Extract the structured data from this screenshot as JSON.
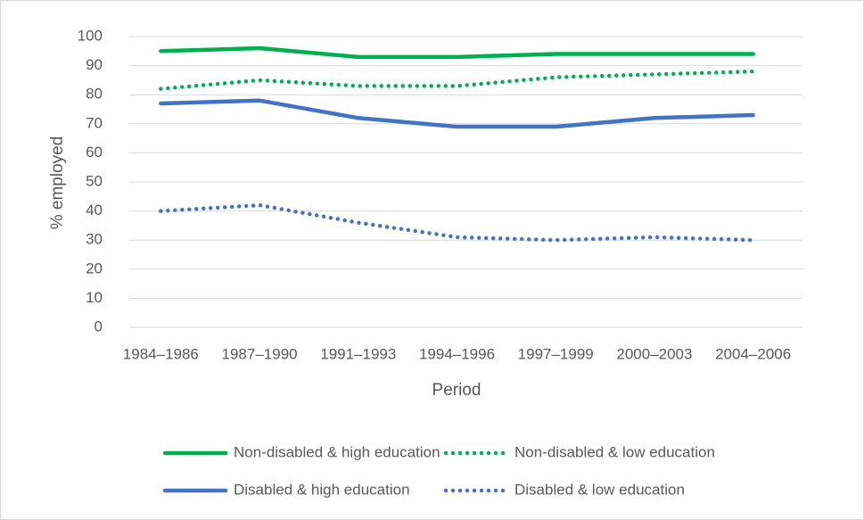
{
  "chart_data": {
    "type": "line",
    "xlabel": "Period",
    "ylabel": "% employed",
    "categories": [
      "1984–1986",
      "1987–1990",
      "1991–1993",
      "1994–1996",
      "1997–1999",
      "2000–2003",
      "2004–2006"
    ],
    "series": [
      {
        "name": "Non-disabled & high education",
        "color": "#00b050",
        "line_style": "solid",
        "values": [
          95,
          96,
          93,
          93,
          94,
          94,
          94
        ]
      },
      {
        "name": "Non-disabled & low education",
        "color": "#00b050",
        "line_style": "dotted",
        "values": [
          82,
          85,
          83,
          83,
          86,
          87,
          88
        ]
      },
      {
        "name": "Disabled & high education",
        "color": "#4472c4",
        "line_style": "solid",
        "values": [
          77,
          78,
          72,
          69,
          69,
          72,
          73
        ]
      },
      {
        "name": "Disabled & low education",
        "color": "#4472c4",
        "line_style": "dotted",
        "values": [
          40,
          42,
          36,
          31,
          30,
          31,
          30
        ]
      }
    ],
    "ylim": [
      0,
      100
    ],
    "yticks": [
      0,
      10,
      20,
      30,
      40,
      50,
      60,
      70,
      80,
      90,
      100
    ],
    "grid": true,
    "legend": "bottom"
  }
}
